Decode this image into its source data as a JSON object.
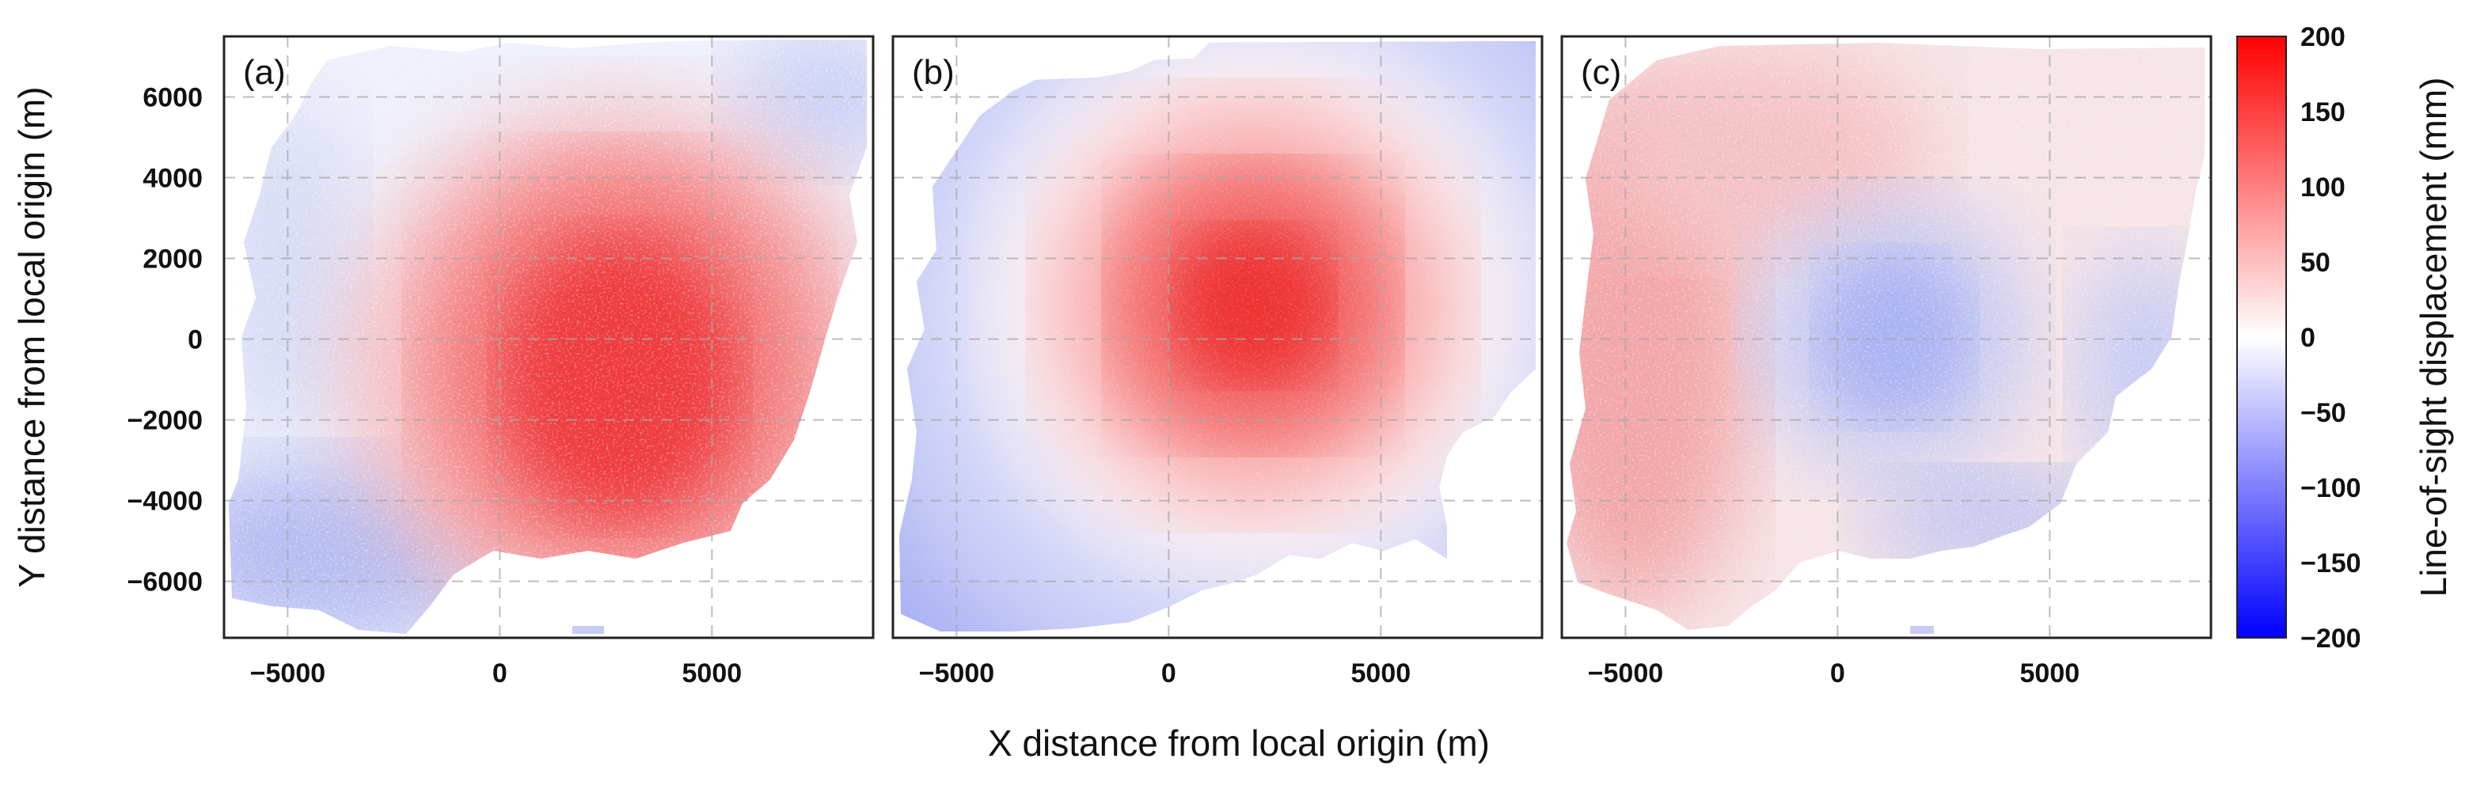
{
  "chart_data": [
    {
      "type": "heatmap",
      "panel": "(a)",
      "description_values": "observed line-of-sight displacement field",
      "xlim": [
        -6500,
        8800
      ],
      "ylim": [
        -7400,
        7500
      ],
      "peak": {
        "x": 3200,
        "y": -300,
        "value": 125
      },
      "background_value": -45
    },
    {
      "type": "heatmap",
      "panel": "(b)",
      "xlim": [
        -6500,
        8800
      ],
      "ylim": [
        -7400,
        7500
      ],
      "peak": {
        "x": 2200,
        "y": 300,
        "value": 140
      },
      "background_value": -75
    },
    {
      "type": "heatmap",
      "panel": "(c)",
      "xlim": [
        -6500,
        8800
      ],
      "ylim": [
        -7400,
        7500
      ],
      "peak": {
        "x": 1000,
        "y": 0,
        "value": -45
      },
      "background_value": 45
    }
  ],
  "axes": {
    "xlabel": "X distance from local origin (m)",
    "ylabel": "Y distance from local origin (m)",
    "xticks": [
      -5000,
      0,
      5000
    ],
    "xtick_labels": [
      "−5000",
      "0",
      "5000"
    ],
    "yticks": [
      6000,
      4000,
      2000,
      0,
      -2000,
      -4000,
      -6000
    ],
    "ytick_labels": [
      "6000",
      "4000",
      "2000",
      "0",
      "−2000",
      "−4000",
      "−6000"
    ],
    "grid": true,
    "grid_style": "dashed"
  },
  "colorbar": {
    "label": "Line-of-sight displacement (mm)",
    "range": [
      -200,
      200
    ],
    "ticks": [
      200,
      150,
      100,
      50,
      0,
      -50,
      -100,
      -150,
      -200
    ],
    "tick_labels": [
      "200",
      "150",
      "100",
      "50",
      "0",
      "−50",
      "−100",
      "−150",
      "−200"
    ],
    "colors": {
      "low": "#0000ff",
      "mid": "#ffffff",
      "high": "#ff0000"
    }
  },
  "panel_labels": [
    "(a)",
    "(b)",
    "(c)"
  ]
}
